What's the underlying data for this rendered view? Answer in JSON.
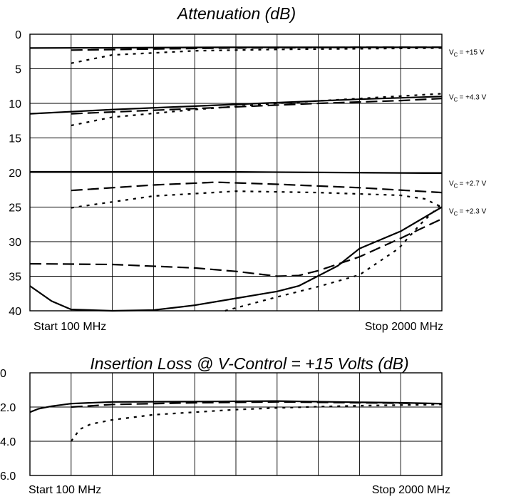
{
  "chart_data": [
    {
      "type": "line",
      "title": "Attenuation (dB)",
      "x_start_label": "Start 100 MHz",
      "x_stop_label": "Stop 2000 MHz",
      "xlim": [
        100,
        2000
      ],
      "x_divisions": 10,
      "ylim": [
        0,
        40
      ],
      "y_inverted": true,
      "y_ticks": [
        "0",
        "5",
        "10",
        "15",
        "20",
        "25",
        "30",
        "35",
        "40"
      ],
      "grid": true,
      "line_styles": [
        "solid",
        "dashed",
        "dotted"
      ],
      "curve_labels": [
        {
          "prefix": "V",
          "sub": "C",
          "text": "= +15 V",
          "y": 2.5
        },
        {
          "prefix": "V",
          "sub": "C",
          "text": "= +4.3 V",
          "y": 9.0
        },
        {
          "prefix": "V",
          "sub": "C",
          "text": "= +2.7 V",
          "y": 21.5
        },
        {
          "prefix": "V",
          "sub": "C",
          "text": "= +2.3 V",
          "y": 25.5
        }
      ],
      "series": [
        {
          "group": "+15 V",
          "style": "solid",
          "x": [
            100,
            1000,
            2000
          ],
          "y": [
            2.0,
            1.9,
            1.9
          ]
        },
        {
          "group": "+15 V",
          "style": "dashed",
          "x": [
            290,
            1000,
            1600,
            2000
          ],
          "y": [
            2.3,
            2.0,
            1.9,
            1.9
          ]
        },
        {
          "group": "+15 V",
          "style": "dotted",
          "x": [
            290,
            480,
            860,
            1240,
            1620,
            2000
          ],
          "y": [
            4.2,
            3.0,
            2.4,
            2.2,
            2.1,
            2.0
          ]
        },
        {
          "group": "+4.3 V",
          "style": "solid",
          "x": [
            100,
            480,
            860,
            1240,
            1620,
            2000
          ],
          "y": [
            11.5,
            10.9,
            10.4,
            9.9,
            9.4,
            9.0
          ]
        },
        {
          "group": "+4.3 V",
          "style": "dashed",
          "x": [
            290,
            670,
            1050,
            1430,
            1810,
            2000
          ],
          "y": [
            11.5,
            11.0,
            10.5,
            10.0,
            9.6,
            9.3
          ]
        },
        {
          "group": "+4.3 V",
          "style": "dotted",
          "x": [
            290,
            480,
            860,
            1240,
            1620,
            2000
          ],
          "y": [
            13.2,
            12.0,
            10.9,
            10.0,
            9.3,
            8.6
          ]
        },
        {
          "group": "+2.7 V",
          "style": "solid",
          "x": [
            100,
            1000,
            2000
          ],
          "y": [
            19.9,
            19.9,
            20.1
          ]
        },
        {
          "group": "+2.7 V",
          "style": "dashed",
          "x": [
            290,
            670,
            960,
            1240,
            1620,
            2000
          ],
          "y": [
            22.6,
            21.8,
            21.4,
            21.7,
            22.2,
            22.9
          ]
        },
        {
          "group": "+2.7 V",
          "style": "dotted",
          "x": [
            290,
            670,
            1050,
            1430,
            1810,
            1920,
            2000
          ],
          "y": [
            25.1,
            23.4,
            22.7,
            22.9,
            23.3,
            23.8,
            25.0
          ]
        },
        {
          "group": "+2.3 V",
          "style": "solid",
          "x": [
            100,
            200,
            290,
            480,
            670,
            860,
            1050,
            1240,
            1340,
            1520,
            1620,
            1810,
            2000
          ],
          "y": [
            36.4,
            38.6,
            39.8,
            40.0,
            39.9,
            39.2,
            38.2,
            37.2,
            36.4,
            33.5,
            31.0,
            28.5,
            25.0
          ]
        },
        {
          "group": "+2.3 V",
          "style": "dashed",
          "x": [
            100,
            480,
            860,
            1050,
            1240,
            1340,
            1430,
            1620,
            1810,
            2000
          ],
          "y": [
            33.2,
            33.3,
            33.8,
            34.3,
            35.0,
            34.9,
            34.2,
            32.2,
            29.5,
            26.7
          ]
        },
        {
          "group": "+2.3 V",
          "style": "dotted",
          "x": [
            1000,
            1240,
            1430,
            1620,
            1800,
            1900,
            2000
          ],
          "y": [
            40.0,
            38.0,
            36.5,
            34.8,
            31.0,
            27.5,
            24.5
          ]
        }
      ]
    },
    {
      "type": "line",
      "title": "Insertion Loss @ V-Control = +15 Volts (dB)",
      "x_start_label": "Start 100 MHz",
      "x_stop_label": "Stop 2000 MHz",
      "xlim": [
        100,
        2000
      ],
      "x_divisions": 10,
      "ylim": [
        0,
        6
      ],
      "y_inverted": true,
      "y_ticks": [
        "0",
        "2.0",
        "4.0",
        "6.0"
      ],
      "grid": true,
      "line_styles": [
        "solid",
        "dashed",
        "dotted"
      ],
      "series": [
        {
          "style": "solid",
          "x": [
            100,
            140,
            200,
            290,
            480,
            860,
            1240,
            1620,
            1810,
            2000
          ],
          "y": [
            2.3,
            2.1,
            1.95,
            1.8,
            1.7,
            1.68,
            1.65,
            1.72,
            1.75,
            1.8
          ]
        },
        {
          "style": "dashed",
          "x": [
            290,
            480,
            860,
            1240,
            1620,
            2000
          ],
          "y": [
            2.0,
            1.85,
            1.75,
            1.7,
            1.75,
            1.8
          ]
        },
        {
          "style": "dotted",
          "x": [
            290,
            330,
            380,
            480,
            670,
            860,
            1050,
            1240,
            1430,
            1620,
            2000
          ],
          "y": [
            4.0,
            3.3,
            3.0,
            2.75,
            2.45,
            2.3,
            2.15,
            2.05,
            1.98,
            1.92,
            1.85
          ]
        }
      ]
    }
  ]
}
